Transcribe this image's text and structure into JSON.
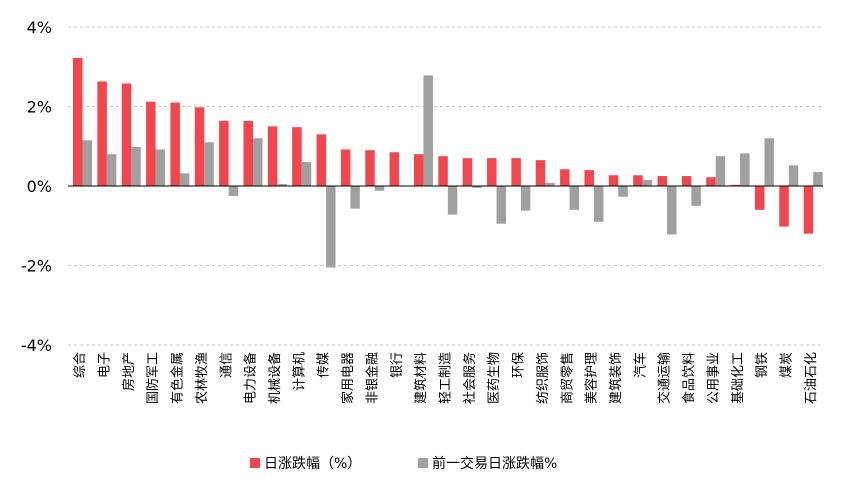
{
  "chart_data": {
    "type": "bar",
    "categories": [
      "综合",
      "电子",
      "房地产",
      "国防军工",
      "有色金属",
      "农林牧渔",
      "通信",
      "电力设备",
      "机械设备",
      "计算机",
      "传媒",
      "家用电器",
      "非银金融",
      "银行",
      "建筑材料",
      "轻工制造",
      "社会服务",
      "医药生物",
      "环保",
      "纺织服饰",
      "商贸零售",
      "美容护理",
      "建筑装饰",
      "汽车",
      "交通运输",
      "食品饮料",
      "公用事业",
      "基础化工",
      "钢铁",
      "煤炭",
      "石油石化"
    ],
    "series": [
      {
        "name": "日涨跌幅（%）",
        "color": "#f0464e",
        "values": [
          3.22,
          2.63,
          2.58,
          2.12,
          2.1,
          1.98,
          1.64,
          1.64,
          1.5,
          1.48,
          1.3,
          0.92,
          0.9,
          0.85,
          0.8,
          0.75,
          0.7,
          0.7,
          0.7,
          0.65,
          0.42,
          0.4,
          0.27,
          0.27,
          0.25,
          0.25,
          0.22,
          0.03,
          -0.6,
          -1.02,
          -1.2
        ]
      },
      {
        "name": "前一交易日涨跌幅%",
        "color": "#a0a0a0",
        "values": [
          1.15,
          0.8,
          0.98,
          0.92,
          0.32,
          1.1,
          -0.25,
          1.2,
          0.05,
          0.6,
          -2.05,
          -0.57,
          -0.12,
          0.0,
          2.78,
          -0.72,
          -0.05,
          -0.95,
          -0.62,
          0.08,
          -0.6,
          -0.9,
          -0.27,
          0.15,
          -1.22,
          -0.5,
          0.75,
          0.82,
          1.2,
          0.52,
          0.35
        ]
      }
    ],
    "ylim": [
      -4,
      4
    ],
    "yticks": [
      -4,
      -2,
      0,
      2,
      4
    ],
    "ytick_labels": [
      "-4%",
      "-2%",
      "0%",
      "2%",
      "4%"
    ],
    "grid": true,
    "legend_position": "bottom-center"
  }
}
